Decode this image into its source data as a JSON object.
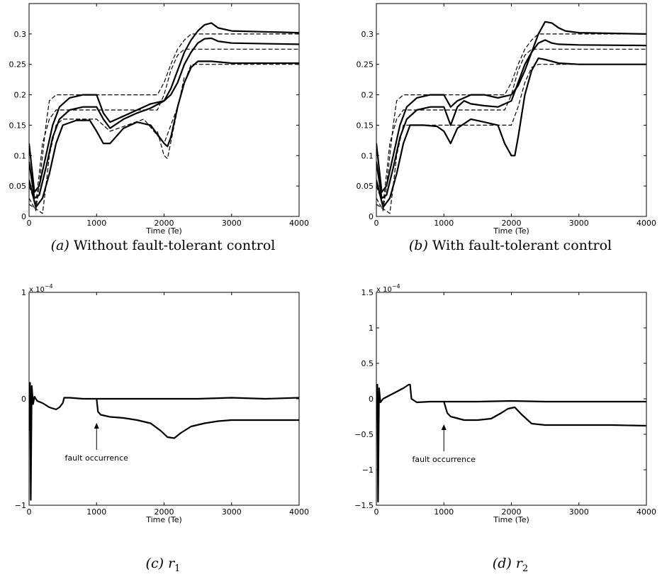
{
  "chart_data": [
    {
      "panel_id": "a",
      "type": "line",
      "caption_label": "(a)",
      "caption_text": "Without fault-tolerant control",
      "xlabel": "Time (Te)",
      "xlim": [
        0,
        4000
      ],
      "ylim": [
        0,
        0.35
      ],
      "xticks": [
        0,
        1000,
        2000,
        3000,
        4000
      ],
      "yticks": [
        0,
        0.05,
        0.1,
        0.15,
        0.2,
        0.25,
        0.3
      ],
      "ytick_labels": [
        "0",
        "0.05",
        "0.1",
        "0.15",
        "0.2",
        "0.25",
        "0.3"
      ],
      "exponent_label": "",
      "annotation": "",
      "series": [
        {
          "style": "dashed",
          "x": [
            0,
            100,
            150,
            200,
            250,
            300,
            400,
            500,
            1000,
            1500,
            1900,
            2000,
            2100,
            2200,
            2300,
            2400,
            2500,
            4000
          ],
          "y": [
            0.03,
            0.01,
            0.05,
            0.1,
            0.15,
            0.19,
            0.2,
            0.2,
            0.2,
            0.2,
            0.2,
            0.22,
            0.25,
            0.275,
            0.29,
            0.3,
            0.3,
            0.3
          ]
        },
        {
          "style": "dashed",
          "x": [
            0,
            200,
            250,
            300,
            400,
            500,
            700,
            1000,
            1200,
            1700,
            2000,
            2200,
            2300,
            2400,
            4000
          ],
          "y": [
            0.02,
            0.005,
            0.05,
            0.1,
            0.15,
            0.16,
            0.16,
            0.16,
            0.14,
            0.16,
            0.12,
            0.18,
            0.22,
            0.25,
            0.25
          ]
        },
        {
          "style": "dashed",
          "x": [
            0,
            100,
            150,
            200,
            300,
            400,
            500,
            1000,
            1500,
            1900,
            2000,
            2100,
            2200,
            2300,
            4000
          ],
          "y": [
            0.05,
            0.02,
            0.07,
            0.12,
            0.16,
            0.175,
            0.175,
            0.175,
            0.175,
            0.175,
            0.2,
            0.24,
            0.265,
            0.275,
            0.275
          ]
        },
        {
          "style": "dashed",
          "x": [
            1900,
            2000,
            2050,
            2150,
            2300
          ],
          "y": [
            0.14,
            0.1,
            0.095,
            0.15,
            0.23
          ]
        },
        {
          "style": "solid",
          "x": [
            0,
            80,
            150,
            250,
            350,
            450,
            600,
            800,
            1000,
            1100,
            1200,
            1400,
            1600,
            1800,
            2000,
            2100,
            2200,
            2300,
            2400,
            2500,
            2600,
            2700,
            2800,
            3000,
            4000
          ],
          "y": [
            0.12,
            0.04,
            0.05,
            0.1,
            0.15,
            0.18,
            0.195,
            0.2,
            0.2,
            0.17,
            0.155,
            0.165,
            0.175,
            0.185,
            0.19,
            0.21,
            0.24,
            0.27,
            0.29,
            0.305,
            0.315,
            0.318,
            0.31,
            0.305,
            0.302
          ]
        },
        {
          "style": "solid",
          "x": [
            0,
            80,
            150,
            250,
            350,
            450,
            600,
            800,
            1000,
            1100,
            1200,
            1400,
            1600,
            1800,
            2000,
            2100,
            2200,
            2300,
            2400,
            2500,
            2600,
            2700,
            2800,
            3000,
            4000
          ],
          "y": [
            0.09,
            0.03,
            0.035,
            0.08,
            0.13,
            0.16,
            0.175,
            0.18,
            0.18,
            0.16,
            0.145,
            0.16,
            0.17,
            0.178,
            0.19,
            0.2,
            0.22,
            0.25,
            0.27,
            0.285,
            0.292,
            0.293,
            0.288,
            0.285,
            0.283
          ]
        },
        {
          "style": "solid",
          "x": [
            0,
            100,
            200,
            300,
            400,
            500,
            700,
            900,
            1000,
            1100,
            1200,
            1400,
            1600,
            1800,
            1900,
            2000,
            2050,
            2100,
            2200,
            2300,
            2400,
            2500,
            2700,
            3000,
            4000
          ],
          "y": [
            0.06,
            0.015,
            0.03,
            0.07,
            0.12,
            0.15,
            0.158,
            0.158,
            0.14,
            0.12,
            0.12,
            0.145,
            0.155,
            0.15,
            0.135,
            0.12,
            0.115,
            0.13,
            0.18,
            0.22,
            0.245,
            0.255,
            0.255,
            0.252,
            0.252
          ]
        }
      ]
    },
    {
      "panel_id": "b",
      "type": "line",
      "caption_label": "(b)",
      "caption_text": "With fault-tolerant control",
      "xlabel": "Time (Te)",
      "xlim": [
        0,
        4000
      ],
      "ylim": [
        0,
        0.35
      ],
      "xticks": [
        0,
        1000,
        2000,
        3000,
        4000
      ],
      "yticks": [
        0,
        0.05,
        0.1,
        0.15,
        0.2,
        0.25,
        0.3
      ],
      "ytick_labels": [
        "0",
        "0.05",
        "0.1",
        "0.15",
        "0.2",
        "0.25",
        "0.3"
      ],
      "exponent_label": "",
      "annotation": "",
      "series": [
        {
          "style": "dashed",
          "x": [
            0,
            100,
            150,
            200,
            250,
            300,
            400,
            500,
            1000,
            1500,
            1900,
            2000,
            2100,
            2200,
            2300,
            2400,
            2500,
            4000
          ],
          "y": [
            0.03,
            0.01,
            0.05,
            0.1,
            0.15,
            0.19,
            0.2,
            0.2,
            0.2,
            0.2,
            0.2,
            0.22,
            0.25,
            0.275,
            0.29,
            0.3,
            0.3,
            0.3
          ]
        },
        {
          "style": "dashed",
          "x": [
            0,
            200,
            250,
            300,
            400,
            500,
            700,
            1000,
            1500,
            2000,
            2100,
            2200,
            2300,
            2400,
            4000
          ],
          "y": [
            0.02,
            0.005,
            0.05,
            0.1,
            0.15,
            0.15,
            0.15,
            0.15,
            0.15,
            0.15,
            0.18,
            0.22,
            0.245,
            0.25,
            0.25
          ]
        },
        {
          "style": "dashed",
          "x": [
            0,
            100,
            150,
            200,
            300,
            400,
            500,
            1000,
            1500,
            1900,
            2000,
            2100,
            2200,
            2300,
            4000
          ],
          "y": [
            0.05,
            0.02,
            0.07,
            0.12,
            0.16,
            0.175,
            0.175,
            0.175,
            0.175,
            0.175,
            0.2,
            0.24,
            0.265,
            0.275,
            0.275
          ]
        },
        {
          "style": "solid",
          "x": [
            0,
            80,
            150,
            250,
            350,
            450,
            600,
            800,
            1000,
            1100,
            1200,
            1400,
            1600,
            1800,
            2000,
            2100,
            2200,
            2300,
            2400,
            2500,
            2600,
            2700,
            2800,
            3000,
            4000
          ],
          "y": [
            0.12,
            0.04,
            0.05,
            0.1,
            0.15,
            0.18,
            0.195,
            0.2,
            0.2,
            0.18,
            0.19,
            0.2,
            0.2,
            0.195,
            0.2,
            0.215,
            0.24,
            0.27,
            0.3,
            0.32,
            0.318,
            0.31,
            0.305,
            0.302,
            0.3
          ]
        },
        {
          "style": "solid",
          "x": [
            0,
            80,
            150,
            250,
            350,
            450,
            600,
            800,
            1000,
            1100,
            1200,
            1300,
            1400,
            1600,
            1800,
            2000,
            2100,
            2200,
            2300,
            2400,
            2500,
            2600,
            2700,
            3000,
            4000
          ],
          "y": [
            0.09,
            0.03,
            0.035,
            0.08,
            0.13,
            0.16,
            0.175,
            0.18,
            0.18,
            0.15,
            0.18,
            0.19,
            0.185,
            0.182,
            0.18,
            0.19,
            0.22,
            0.25,
            0.27,
            0.285,
            0.29,
            0.285,
            0.283,
            0.282,
            0.281
          ]
        },
        {
          "style": "solid",
          "x": [
            0,
            100,
            200,
            300,
            400,
            500,
            700,
            900,
            1000,
            1100,
            1200,
            1400,
            1600,
            1800,
            1900,
            2000,
            2050,
            2100,
            2200,
            2300,
            2400,
            2500,
            2700,
            3000,
            4000
          ],
          "y": [
            0.06,
            0.015,
            0.03,
            0.07,
            0.12,
            0.15,
            0.15,
            0.148,
            0.14,
            0.12,
            0.145,
            0.16,
            0.155,
            0.15,
            0.12,
            0.1,
            0.1,
            0.13,
            0.2,
            0.24,
            0.26,
            0.258,
            0.252,
            0.25,
            0.25
          ]
        }
      ]
    },
    {
      "panel_id": "c",
      "type": "line",
      "caption_label": "(c)",
      "caption_text": "r",
      "caption_sub": "1",
      "xlabel": "Time (Te)",
      "xlim": [
        0,
        4000
      ],
      "ylim": [
        -1,
        1
      ],
      "xticks": [
        0,
        1000,
        2000,
        3000,
        4000
      ],
      "yticks": [
        -1,
        0,
        1
      ],
      "ytick_labels": [
        "−1",
        "0",
        "1"
      ],
      "exponent_label": "x 10",
      "exponent_power": "−4",
      "annotation": "fault occurrence",
      "annotation_x": 1000,
      "series": [
        {
          "style": "solid",
          "x": [
            0,
            15,
            25,
            40,
            60,
            80,
            120,
            200,
            300,
            400,
            450,
            500,
            520,
            600,
            800,
            1000,
            1500,
            2000,
            2500,
            3000,
            3500,
            4000
          ],
          "y": [
            -0.3,
            0.15,
            -0.95,
            0.12,
            -0.05,
            0.02,
            -0.02,
            -0.04,
            -0.08,
            -0.1,
            -0.08,
            -0.04,
            0.01,
            0.01,
            0.0,
            0.0,
            0.0,
            0.0,
            0.0,
            0.01,
            0.0,
            0.01
          ]
        },
        {
          "style": "solid",
          "x": [
            1000,
            1020,
            1060,
            1200,
            1400,
            1600,
            1800,
            1950,
            2050,
            2150,
            2250,
            2400,
            2600,
            2800,
            3000,
            3500,
            4000
          ],
          "y": [
            0.0,
            -0.12,
            -0.15,
            -0.17,
            -0.18,
            -0.2,
            -0.23,
            -0.3,
            -0.36,
            -0.37,
            -0.32,
            -0.26,
            -0.23,
            -0.21,
            -0.2,
            -0.2,
            -0.2
          ]
        }
      ]
    },
    {
      "panel_id": "d",
      "type": "line",
      "caption_label": "(d)",
      "caption_text": "r",
      "caption_sub": "2",
      "xlabel": "Time (Te)",
      "xlim": [
        0,
        4000
      ],
      "ylim": [
        -1.5,
        1.5
      ],
      "xticks": [
        0,
        1000,
        2000,
        3000,
        4000
      ],
      "yticks": [
        -1.5,
        -1,
        -0.5,
        0,
        0.5,
        1,
        1.5
      ],
      "ytick_labels": [
        "−1.5",
        "−1",
        "−0.5",
        "0",
        "0.5",
        "1",
        "1.5"
      ],
      "exponent_label": "x 10",
      "exponent_power": "−4",
      "annotation": "fault occurrence",
      "annotation_x": 1000,
      "series": [
        {
          "style": "solid",
          "x": [
            0,
            15,
            25,
            40,
            60,
            100,
            200,
            300,
            400,
            480,
            500,
            520,
            600,
            800,
            1000,
            1500,
            2000,
            2500,
            3000,
            3500,
            4000
          ],
          "y": [
            -0.3,
            0.2,
            -1.45,
            0.15,
            -0.05,
            0.0,
            0.05,
            0.1,
            0.15,
            0.2,
            0.2,
            0.0,
            -0.05,
            -0.04,
            -0.04,
            -0.04,
            -0.03,
            -0.04,
            -0.04,
            -0.04,
            -0.04
          ]
        },
        {
          "style": "solid",
          "x": [
            1000,
            1050,
            1100,
            1300,
            1500,
            1700,
            1850,
            1950,
            2050,
            2150,
            2300,
            2500,
            2800,
            3000,
            3500,
            4000
          ],
          "y": [
            -0.04,
            -0.2,
            -0.25,
            -0.3,
            -0.3,
            -0.28,
            -0.2,
            -0.14,
            -0.12,
            -0.22,
            -0.35,
            -0.37,
            -0.37,
            -0.37,
            -0.37,
            -0.38
          ]
        }
      ]
    }
  ]
}
